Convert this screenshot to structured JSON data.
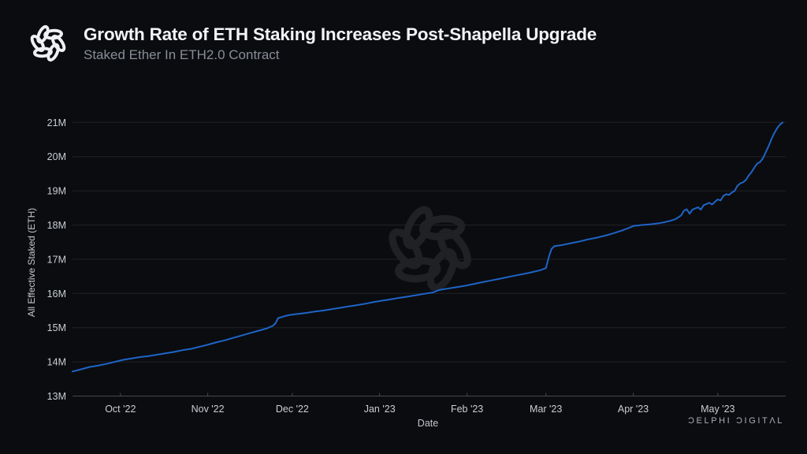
{
  "header": {
    "title": "Growth Rate of ETH Staking Increases Post-Shapella Upgrade",
    "subtitle": "Staked Ether In ETH2.0 Contract"
  },
  "footer": {
    "wordmark": "ƆELPHI ƆIGITΛL"
  },
  "icons": {
    "brand_logo": "delphi-knot-icon",
    "watermark": "delphi-knot-watermark"
  },
  "colors": {
    "background": "#0b0c0f",
    "line": "#1e64c8",
    "gridline": "#202227",
    "axis": "#45484d",
    "tick_text": "#c9ced3",
    "axis_title_text": "#c2c7cc",
    "title_text": "#f2f4f7",
    "subtitle_text": "#878d97",
    "watermark": "#1f2125"
  },
  "chart_data": {
    "type": "line",
    "title": "Growth Rate of ETH Staking Increases Post-Shapella Upgrade",
    "subtitle": "Staked Ether In ETH2.0 Contract",
    "xlabel": "Date",
    "ylabel": "All Effective Staked (ETH)",
    "legend": "none",
    "grid": "horizontal",
    "x_domain": [
      "2022-09-14",
      "2023-05-24"
    ],
    "ylim_millions": [
      13,
      21
    ],
    "y_ticks": [
      {
        "value": 13,
        "label": "13M"
      },
      {
        "value": 14,
        "label": "14M"
      },
      {
        "value": 15,
        "label": "15M"
      },
      {
        "value": 16,
        "label": "16M"
      },
      {
        "value": 17,
        "label": "17M"
      },
      {
        "value": 18,
        "label": "18M"
      },
      {
        "value": 19,
        "label": "19M"
      },
      {
        "value": 20,
        "label": "20M"
      },
      {
        "value": 21,
        "label": "21M"
      }
    ],
    "x_ticks": [
      {
        "date": "2022-10-01",
        "label": "Oct '22"
      },
      {
        "date": "2022-11-01",
        "label": "Nov '22"
      },
      {
        "date": "2022-12-01",
        "label": "Dec '22"
      },
      {
        "date": "2023-01-01",
        "label": "Jan '23"
      },
      {
        "date": "2023-02-01",
        "label": "Feb '23"
      },
      {
        "date": "2023-03-01",
        "label": "Mar '23"
      },
      {
        "date": "2023-04-01",
        "label": "Apr '23"
      },
      {
        "date": "2023-05-01",
        "label": "May '23"
      }
    ],
    "series": [
      {
        "name": "All Effective Staked (ETH), millions",
        "points": [
          [
            "2022-09-14",
            13.72
          ],
          [
            "2022-09-17",
            13.78
          ],
          [
            "2022-09-20",
            13.85
          ],
          [
            "2022-09-23",
            13.89
          ],
          [
            "2022-09-26",
            13.94
          ],
          [
            "2022-09-29",
            14.0
          ],
          [
            "2022-10-02",
            14.06
          ],
          [
            "2022-10-05",
            14.1
          ],
          [
            "2022-10-08",
            14.14
          ],
          [
            "2022-10-11",
            14.17
          ],
          [
            "2022-10-14",
            14.21
          ],
          [
            "2022-10-17",
            14.25
          ],
          [
            "2022-10-20",
            14.29
          ],
          [
            "2022-10-23",
            14.34
          ],
          [
            "2022-10-26",
            14.38
          ],
          [
            "2022-10-29",
            14.44
          ],
          [
            "2022-11-01",
            14.5
          ],
          [
            "2022-11-04",
            14.57
          ],
          [
            "2022-11-07",
            14.63
          ],
          [
            "2022-11-10",
            14.7
          ],
          [
            "2022-11-13",
            14.77
          ],
          [
            "2022-11-16",
            14.84
          ],
          [
            "2022-11-19",
            14.91
          ],
          [
            "2022-11-22",
            14.98
          ],
          [
            "2022-11-24",
            15.05
          ],
          [
            "2022-11-25",
            15.12
          ],
          [
            "2022-11-26",
            15.28
          ],
          [
            "2022-11-28",
            15.33
          ],
          [
            "2022-11-30",
            15.37
          ],
          [
            "2022-12-03",
            15.4
          ],
          [
            "2022-12-06",
            15.43
          ],
          [
            "2022-12-09",
            15.47
          ],
          [
            "2022-12-12",
            15.5
          ],
          [
            "2022-12-15",
            15.54
          ],
          [
            "2022-12-18",
            15.58
          ],
          [
            "2022-12-21",
            15.62
          ],
          [
            "2022-12-24",
            15.66
          ],
          [
            "2022-12-27",
            15.7
          ],
          [
            "2022-12-30",
            15.75
          ],
          [
            "2023-01-02",
            15.79
          ],
          [
            "2023-01-05",
            15.83
          ],
          [
            "2023-01-08",
            15.87
          ],
          [
            "2023-01-11",
            15.91
          ],
          [
            "2023-01-14",
            15.95
          ],
          [
            "2023-01-17",
            15.99
          ],
          [
            "2023-01-20",
            16.03
          ],
          [
            "2023-01-22",
            16.1
          ],
          [
            "2023-01-25",
            16.14
          ],
          [
            "2023-01-28",
            16.18
          ],
          [
            "2023-01-31",
            16.22
          ],
          [
            "2023-02-03",
            16.27
          ],
          [
            "2023-02-06",
            16.32
          ],
          [
            "2023-02-09",
            16.37
          ],
          [
            "2023-02-12",
            16.42
          ],
          [
            "2023-02-15",
            16.47
          ],
          [
            "2023-02-18",
            16.52
          ],
          [
            "2023-02-21",
            16.57
          ],
          [
            "2023-02-24",
            16.62
          ],
          [
            "2023-02-27",
            16.68
          ],
          [
            "2023-03-01",
            16.74
          ],
          [
            "2023-03-02",
            17.05
          ],
          [
            "2023-03-03",
            17.3
          ],
          [
            "2023-03-04",
            17.38
          ],
          [
            "2023-03-07",
            17.42
          ],
          [
            "2023-03-10",
            17.47
          ],
          [
            "2023-03-13",
            17.52
          ],
          [
            "2023-03-16",
            17.58
          ],
          [
            "2023-03-19",
            17.63
          ],
          [
            "2023-03-22",
            17.69
          ],
          [
            "2023-03-25",
            17.76
          ],
          [
            "2023-03-28",
            17.84
          ],
          [
            "2023-03-30",
            17.9
          ],
          [
            "2023-04-01",
            17.97
          ],
          [
            "2023-04-04",
            18.0
          ],
          [
            "2023-04-07",
            18.02
          ],
          [
            "2023-04-10",
            18.05
          ],
          [
            "2023-04-12",
            18.08
          ],
          [
            "2023-04-14",
            18.12
          ],
          [
            "2023-04-16",
            18.17
          ],
          [
            "2023-04-18",
            18.28
          ],
          [
            "2023-04-19",
            18.42
          ],
          [
            "2023-04-20",
            18.46
          ],
          [
            "2023-04-21",
            18.33
          ],
          [
            "2023-04-22",
            18.45
          ],
          [
            "2023-04-24",
            18.52
          ],
          [
            "2023-04-25",
            18.45
          ],
          [
            "2023-04-26",
            18.58
          ],
          [
            "2023-04-28",
            18.65
          ],
          [
            "2023-04-29",
            18.6
          ],
          [
            "2023-04-30",
            18.68
          ],
          [
            "2023-05-01",
            18.75
          ],
          [
            "2023-05-02",
            18.72
          ],
          [
            "2023-05-03",
            18.85
          ],
          [
            "2023-05-04",
            18.9
          ],
          [
            "2023-05-05",
            18.88
          ],
          [
            "2023-05-06",
            18.95
          ],
          [
            "2023-05-07",
            19.0
          ],
          [
            "2023-05-08",
            19.15
          ],
          [
            "2023-05-09",
            19.22
          ],
          [
            "2023-05-10",
            19.25
          ],
          [
            "2023-05-11",
            19.32
          ],
          [
            "2023-05-12",
            19.45
          ],
          [
            "2023-05-13",
            19.55
          ],
          [
            "2023-05-14",
            19.68
          ],
          [
            "2023-05-15",
            19.8
          ],
          [
            "2023-05-16",
            19.84
          ],
          [
            "2023-05-17",
            19.95
          ],
          [
            "2023-05-18",
            20.12
          ],
          [
            "2023-05-19",
            20.3
          ],
          [
            "2023-05-20",
            20.5
          ],
          [
            "2023-05-21",
            20.68
          ],
          [
            "2023-05-22",
            20.82
          ],
          [
            "2023-05-23",
            20.93
          ],
          [
            "2023-05-24",
            21.0
          ]
        ]
      }
    ]
  }
}
